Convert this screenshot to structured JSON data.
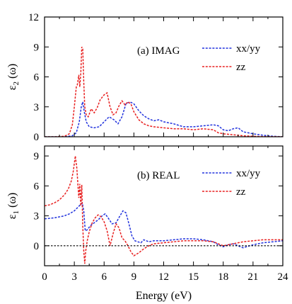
{
  "chart_data": [
    {
      "type": "line",
      "panel_label": "(a) IMAG",
      "ylabel_main": "ε",
      "ylabel_sub": "2",
      "ylabel_rest": " (ω)",
      "xlim": [
        0,
        24
      ],
      "ylim": [
        0,
        12
      ],
      "x_ticks": [
        0,
        3,
        6,
        9,
        12,
        15,
        18,
        21,
        24
      ],
      "y_ticks": [
        0,
        3,
        6,
        9,
        12
      ],
      "y_tick_labels": [
        "0",
        "3",
        "6",
        "9",
        "12"
      ],
      "legend_position": "top-right",
      "series": [
        {
          "name": "xx/yy",
          "color": "#2233dd",
          "x": [
            0,
            1,
            2,
            2.8,
            3.2,
            3.5,
            3.7,
            3.85,
            4.0,
            4.2,
            4.5,
            5.0,
            5.5,
            6.0,
            6.5,
            7.0,
            7.4,
            7.8,
            8.2,
            8.6,
            9.0,
            9.5,
            10.0,
            10.5,
            11.0,
            11.5,
            12.0,
            13.0,
            14.0,
            15.0,
            16.0,
            17.0,
            17.5,
            18.0,
            18.5,
            19.0,
            19.5,
            20.0,
            20.5,
            21.0,
            22.0,
            23.0,
            24.0
          ],
          "y": [
            0,
            0,
            0,
            0.1,
            0.4,
            1.5,
            3.0,
            3.5,
            2.5,
            1.5,
            1.0,
            0.9,
            1.0,
            1.5,
            2.0,
            1.7,
            1.3,
            2.0,
            3.3,
            3.5,
            3.3,
            2.6,
            2.1,
            1.8,
            1.6,
            1.7,
            1.5,
            1.3,
            1.0,
            1.0,
            1.1,
            1.2,
            1.1,
            0.7,
            0.6,
            0.8,
            0.9,
            0.5,
            0.4,
            0.3,
            0.15,
            0.05,
            0
          ]
        },
        {
          "name": "zz",
          "color": "#e82020",
          "x": [
            0,
            1,
            2,
            2.5,
            2.8,
            3.0,
            3.2,
            3.3,
            3.45,
            3.55,
            3.65,
            3.75,
            3.85,
            3.95,
            4.05,
            4.2,
            4.4,
            4.7,
            5.0,
            5.3,
            5.6,
            6.0,
            6.3,
            6.6,
            6.9,
            7.2,
            7.5,
            7.8,
            8.1,
            8.4,
            8.7,
            9.0,
            9.5,
            10.0,
            10.5,
            11.0,
            12.0,
            13.0,
            14.0,
            15.0,
            16.0,
            17.0,
            17.5,
            18.0,
            19.0,
            20.0,
            21.0,
            22.0,
            24.0
          ],
          "y": [
            0,
            0,
            0.05,
            0.3,
            1.2,
            3.0,
            5.0,
            5.2,
            6.2,
            5.0,
            6.3,
            9.0,
            8.8,
            5.5,
            3.0,
            2.2,
            2.0,
            2.8,
            2.4,
            2.9,
            3.7,
            4.2,
            4.4,
            3.0,
            2.2,
            2.4,
            3.1,
            3.6,
            3.2,
            3.5,
            3.3,
            2.5,
            1.7,
            1.3,
            1.1,
            1.0,
            0.9,
            0.8,
            0.8,
            0.7,
            0.8,
            0.7,
            0.4,
            0.3,
            0.2,
            0.1,
            0.05,
            0.02,
            0
          ]
        }
      ]
    },
    {
      "type": "line",
      "panel_label": "(b) REAL",
      "ylabel_main": "ε",
      "ylabel_sub": "1",
      "ylabel_rest": " (ω)",
      "xlabel": "Energy (eV)",
      "xlim": [
        0,
        24
      ],
      "ylim": [
        -2,
        10
      ],
      "x_ticks": [
        0,
        3,
        6,
        9,
        12,
        15,
        18,
        21,
        24
      ],
      "x_tick_labels": [
        "0",
        "3",
        "6",
        "9",
        "12",
        "15",
        "18",
        "21",
        "24"
      ],
      "y_ticks": [
        0,
        3,
        6,
        9
      ],
      "y_tick_labels": [
        "0",
        "3",
        "6",
        "9"
      ],
      "reference_line_y": 0,
      "legend_position": "top-right",
      "series": [
        {
          "name": "xx/yy",
          "color": "#2233dd",
          "x": [
            0,
            0.5,
            1.0,
            1.5,
            2.0,
            2.5,
            3.0,
            3.3,
            3.6,
            3.8,
            3.95,
            4.1,
            4.3,
            4.6,
            5.0,
            5.4,
            5.8,
            6.1,
            6.4,
            6.8,
            7.2,
            7.6,
            7.9,
            8.2,
            8.5,
            8.8,
            9.1,
            9.4,
            9.7,
            10.0,
            10.5,
            11.0,
            12.0,
            13.0,
            14.0,
            15.0,
            16.0,
            17.0,
            17.5,
            18.0,
            18.5,
            19.0,
            19.5,
            20.0,
            21.0,
            22.0,
            23.0,
            24.0
          ],
          "y": [
            2.7,
            2.75,
            2.8,
            2.9,
            3.0,
            3.2,
            3.5,
            3.8,
            4.1,
            4.3,
            3.5,
            1.5,
            1.6,
            2.0,
            2.3,
            2.6,
            3.0,
            3.2,
            2.8,
            2.2,
            2.3,
            3.0,
            3.5,
            3.3,
            2.2,
            1.0,
            0.5,
            0.4,
            0.3,
            0.6,
            0.4,
            0.5,
            0.5,
            0.6,
            0.7,
            0.7,
            0.6,
            0.4,
            0.1,
            -0.1,
            0.1,
            0.2,
            0.0,
            -0.2,
            0.1,
            0.3,
            0.4,
            0.5
          ]
        },
        {
          "name": "zz",
          "color": "#e82020",
          "x": [
            0,
            0.5,
            1.0,
            1.5,
            2.0,
            2.4,
            2.7,
            2.9,
            3.1,
            3.25,
            3.35,
            3.45,
            3.55,
            3.65,
            3.75,
            3.85,
            3.95,
            4.05,
            4.15,
            4.3,
            4.5,
            4.8,
            5.1,
            5.4,
            5.7,
            6.0,
            6.3,
            6.6,
            6.9,
            7.2,
            7.5,
            7.8,
            8.1,
            8.4,
            8.7,
            9.0,
            9.5,
            10.0,
            10.5,
            11.0,
            12.0,
            13.0,
            14.0,
            15.0,
            16.0,
            17.0,
            17.5,
            18.0,
            19.0,
            20.0,
            21.0,
            22.0,
            23.0,
            24.0
          ],
          "y": [
            4.0,
            4.1,
            4.3,
            4.6,
            5.1,
            5.7,
            6.5,
            7.5,
            9.0,
            7.8,
            6.3,
            4.8,
            6.2,
            4.0,
            6.1,
            2.0,
            -0.5,
            -1.8,
            -0.5,
            0.5,
            1.4,
            2.3,
            2.8,
            3.1,
            2.9,
            2.4,
            1.5,
            0.0,
            1.2,
            2.2,
            1.8,
            0.8,
            0.5,
            0.0,
            -0.6,
            -1.0,
            -0.7,
            -0.3,
            0.0,
            0.2,
            0.3,
            0.4,
            0.5,
            0.5,
            0.5,
            0.4,
            0.2,
            0.0,
            0.2,
            0.4,
            0.5,
            0.6,
            0.6,
            0.6
          ]
        }
      ]
    }
  ]
}
